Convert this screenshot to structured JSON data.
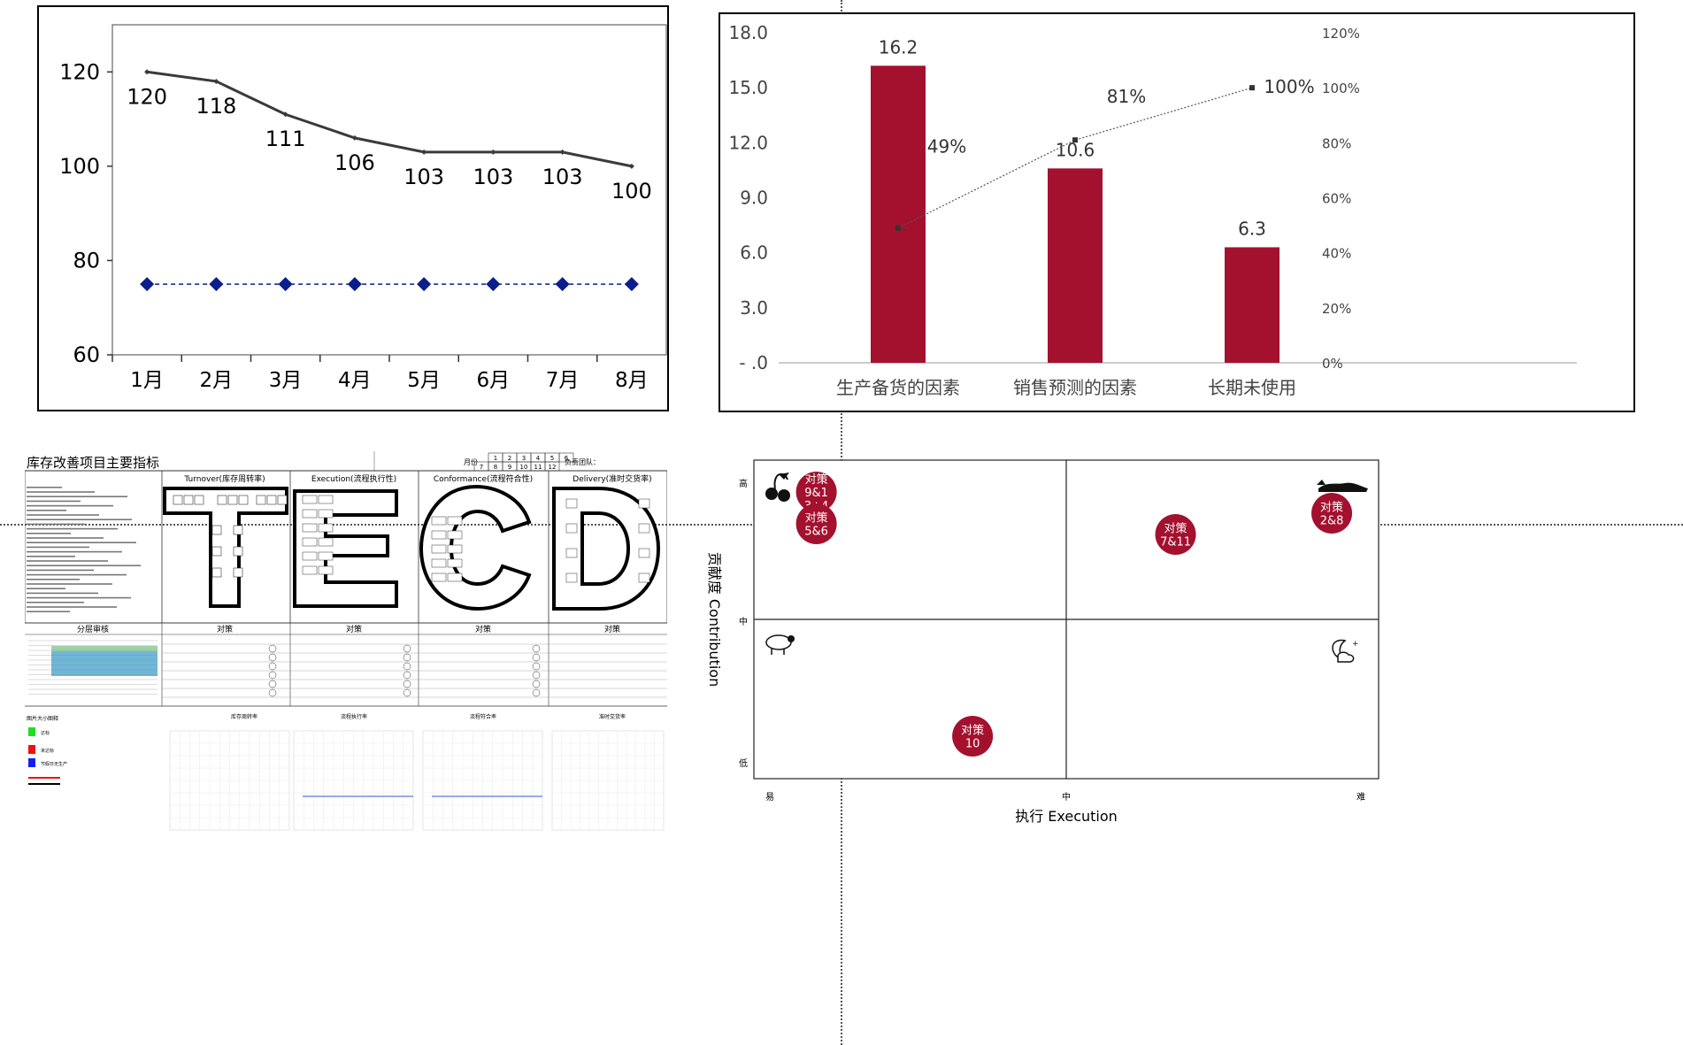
{
  "chart_data": [
    {
      "type": "line",
      "categories": [
        "1月",
        "2月",
        "3月",
        "4月",
        "5月",
        "6月",
        "7月",
        "8月"
      ],
      "series": [
        {
          "name": "",
          "values": [
            120,
            118,
            111,
            106,
            103,
            103,
            103,
            100
          ],
          "color": "#3a3a3a",
          "labels": [
            "120",
            "118",
            "111",
            "106",
            "103",
            "103",
            "103",
            "100"
          ]
        },
        {
          "name": "",
          "values": [
            75,
            75,
            75,
            75,
            75,
            75,
            75,
            75
          ],
          "color": "#0a1e8c",
          "style": "dashed",
          "marker": "diamond"
        }
      ],
      "yticks": [
        "60",
        "80",
        "100",
        "120"
      ],
      "ylim": [
        60,
        130
      ],
      "title": "",
      "xlabel": "",
      "ylabel": ""
    },
    {
      "type": "bar",
      "categories": [
        "生产备货的因素",
        "销售预测的因素",
        "长期未使用"
      ],
      "values": [
        16.2,
        10.6,
        6.3
      ],
      "value_labels": [
        "16.2",
        "10.6",
        "6.3"
      ],
      "bar_color": "#a3112e",
      "yticks": [
        "- .0",
        "3.0",
        "6.0",
        "9.0",
        "12.0",
        "15.0",
        "18.0"
      ],
      "ylim": [
        0,
        18
      ],
      "secondary": {
        "type": "line",
        "values": [
          49,
          81,
          100
        ],
        "labels": [
          "49%",
          "81%",
          "100%"
        ],
        "yticks": [
          "0%",
          "20%",
          "40%",
          "60%",
          "80%",
          "100%",
          "120%"
        ],
        "ylim": [
          0,
          120
        ]
      },
      "title": "",
      "xlabel": "",
      "ylabel": ""
    },
    {
      "type": "scatter",
      "xlabel": "执行 Execution",
      "ylabel": "贡献度 Contribution",
      "x_ticks": [
        "易",
        "中",
        "难"
      ],
      "y_ticks": [
        "低",
        "中",
        "高"
      ],
      "points": [
        {
          "label": [
            "对策",
            "9&1",
            "3+4"
          ],
          "x": 0.2,
          "y": 2.7
        },
        {
          "label": [
            "对策",
            "5&6"
          ],
          "x": 0.2,
          "y": 2.4
        },
        {
          "label": [
            "对策",
            "7&11"
          ],
          "x": 1.35,
          "y": 2.3
        },
        {
          "label": [
            "对策",
            "2&8"
          ],
          "x": 1.85,
          "y": 2.5
        },
        {
          "label": [
            "对策",
            "10"
          ],
          "x": 0.7,
          "y": 0.4
        }
      ],
      "dot_color": "#a3112e",
      "icons": [
        "cherry-icon",
        "sheep-icon",
        "moon-icon",
        "dog-icon"
      ]
    }
  ],
  "dashboard": {
    "title": "库存改善项目主要指标",
    "month_label": "月份",
    "months_row1": [
      "1",
      "2",
      "3",
      "4",
      "5",
      "6"
    ],
    "months_row2": [
      "7",
      "8",
      "9",
      "10",
      "11",
      "12"
    ],
    "team_label": "负责团队：",
    "panels": [
      {
        "header": "Turnover(库存周转率)",
        "letter": "T"
      },
      {
        "header": "Execution(流程执行性)",
        "letter": "E"
      },
      {
        "header": "Conformance(流程符合性)",
        "letter": "C"
      },
      {
        "header": "Delivery(准时交货率)",
        "letter": "D"
      }
    ],
    "section_actions": "对策",
    "section_review": "分层审核",
    "legend_title": "图片大小图释",
    "legend_items": [
      "达标",
      "未达标",
      "节假日无生产"
    ],
    "chart_titles": [
      "库存周转率",
      "流程执行率",
      "流程符合率",
      "准时交货率"
    ]
  }
}
